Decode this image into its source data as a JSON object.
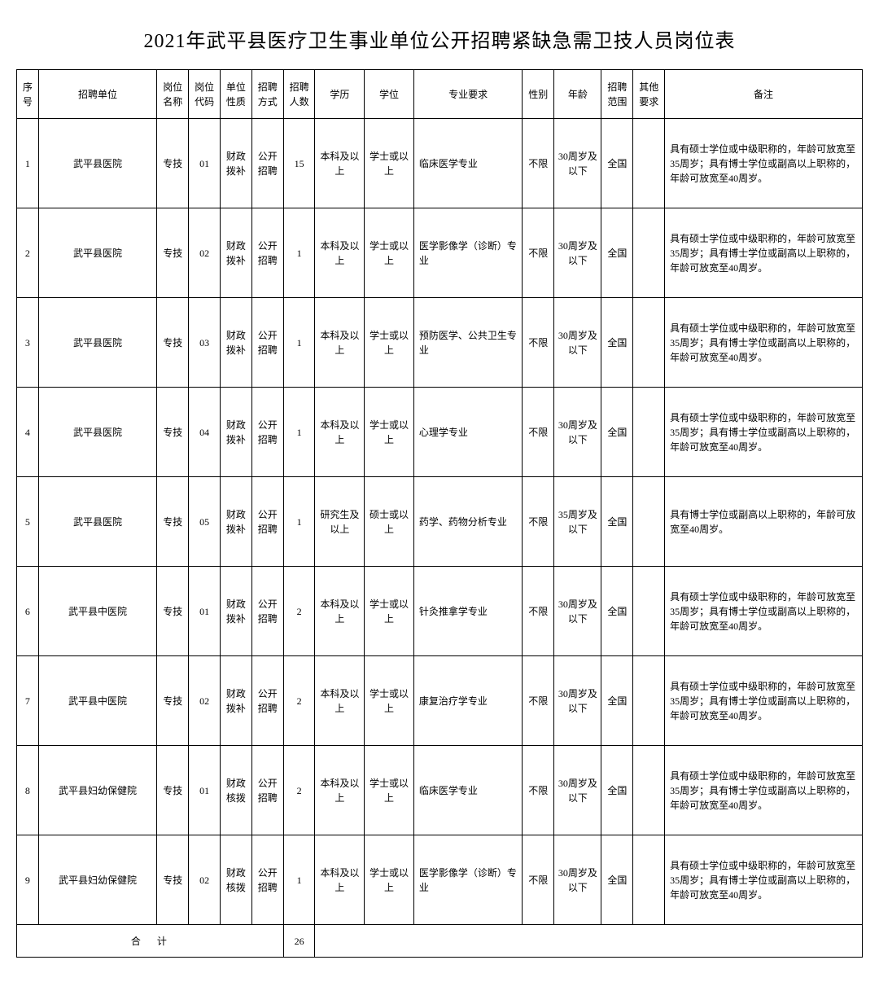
{
  "title": "2021年武平县医疗卫生事业单位公开招聘紧缺急需卫技人员岗位表",
  "headers": {
    "seq": "序号",
    "unit": "招聘单位",
    "posname": "岗位名称",
    "poscode": "岗位代码",
    "unittype": "单位性质",
    "method": "招聘方式",
    "count": "招聘人数",
    "edu": "学历",
    "degree": "学位",
    "major": "专业要求",
    "gender": "性别",
    "age": "年龄",
    "scope": "招聘范围",
    "other": "其他要求",
    "remark": "备注"
  },
  "rows": [
    {
      "seq": "1",
      "unit": "武平县医院",
      "posname": "专技",
      "poscode": "01",
      "unittype": "财政拨补",
      "method": "公开招聘",
      "count": "15",
      "edu": "本科及以上",
      "degree": "学士或以上",
      "major": "临床医学专业",
      "gender": "不限",
      "age": "30周岁及以下",
      "scope": "全国",
      "other": "",
      "remark": "具有硕士学位或中级职称的，年龄可放宽至35周岁；具有博士学位或副高以上职称的，年龄可放宽至40周岁。"
    },
    {
      "seq": "2",
      "unit": "武平县医院",
      "posname": "专技",
      "poscode": "02",
      "unittype": "财政拨补",
      "method": "公开招聘",
      "count": "1",
      "edu": "本科及以上",
      "degree": "学士或以上",
      "major": "医学影像学（诊断）专业",
      "gender": "不限",
      "age": "30周岁及以下",
      "scope": "全国",
      "other": "",
      "remark": "具有硕士学位或中级职称的，年龄可放宽至35周岁；具有博士学位或副高以上职称的，年龄可放宽至40周岁。"
    },
    {
      "seq": "3",
      "unit": "武平县医院",
      "posname": "专技",
      "poscode": "03",
      "unittype": "财政拨补",
      "method": "公开招聘",
      "count": "1",
      "edu": "本科及以上",
      "degree": "学士或以上",
      "major": "预防医学、公共卫生专业",
      "gender": "不限",
      "age": "30周岁及以下",
      "scope": "全国",
      "other": "",
      "remark": "具有硕士学位或中级职称的，年龄可放宽至35周岁；具有博士学位或副高以上职称的，年龄可放宽至40周岁。"
    },
    {
      "seq": "4",
      "unit": "武平县医院",
      "posname": "专技",
      "poscode": "04",
      "unittype": "财政拨补",
      "method": "公开招聘",
      "count": "1",
      "edu": "本科及以上",
      "degree": "学士或以上",
      "major": "心理学专业",
      "gender": "不限",
      "age": "30周岁及以下",
      "scope": "全国",
      "other": "",
      "remark": "具有硕士学位或中级职称的，年龄可放宽至35周岁；具有博士学位或副高以上职称的，年龄可放宽至40周岁。"
    },
    {
      "seq": "5",
      "unit": "武平县医院",
      "posname": "专技",
      "poscode": "05",
      "unittype": "财政拨补",
      "method": "公开招聘",
      "count": "1",
      "edu": "研究生及以上",
      "degree": "硕士或以上",
      "major": "药学、药物分析专业",
      "gender": "不限",
      "age": "35周岁及以下",
      "scope": "全国",
      "other": "",
      "remark": "具有博士学位或副高以上职称的，年龄可放宽至40周岁。"
    },
    {
      "seq": "6",
      "unit": "武平县中医院",
      "posname": "专技",
      "poscode": "01",
      "unittype": "财政拨补",
      "method": "公开招聘",
      "count": "2",
      "edu": "本科及以上",
      "degree": "学士或以上",
      "major": "针灸推拿学专业",
      "gender": "不限",
      "age": "30周岁及以下",
      "scope": "全国",
      "other": "",
      "remark": "具有硕士学位或中级职称的，年龄可放宽至35周岁；具有博士学位或副高以上职称的，年龄可放宽至40周岁。"
    },
    {
      "seq": "7",
      "unit": "武平县中医院",
      "posname": "专技",
      "poscode": "02",
      "unittype": "财政拨补",
      "method": "公开招聘",
      "count": "2",
      "edu": "本科及以上",
      "degree": "学士或以上",
      "major": "康复治疗学专业",
      "gender": "不限",
      "age": "30周岁及以下",
      "scope": "全国",
      "other": "",
      "remark": "具有硕士学位或中级职称的，年龄可放宽至35周岁；具有博士学位或副高以上职称的，年龄可放宽至40周岁。"
    },
    {
      "seq": "8",
      "unit": "武平县妇幼保健院",
      "posname": "专技",
      "poscode": "01",
      "unittype": "财政核拨",
      "method": "公开招聘",
      "count": "2",
      "edu": "本科及以上",
      "degree": "学士或以上",
      "major": "临床医学专业",
      "gender": "不限",
      "age": "30周岁及以下",
      "scope": "全国",
      "other": "",
      "remark": "具有硕士学位或中级职称的，年龄可放宽至35周岁；具有博士学位或副高以上职称的，年龄可放宽至40周岁。"
    },
    {
      "seq": "9",
      "unit": "武平县妇幼保健院",
      "posname": "专技",
      "poscode": "02",
      "unittype": "财政核拨",
      "method": "公开招聘",
      "count": "1",
      "edu": "本科及以上",
      "degree": "学士或以上",
      "major": "医学影像学（诊断）专业",
      "gender": "不限",
      "age": "30周岁及以下",
      "scope": "全国",
      "other": "",
      "remark": "具有硕士学位或中级职称的，年龄可放宽至35周岁；具有博士学位或副高以上职称的，年龄可放宽至40周岁。"
    }
  ],
  "total": {
    "label": "合计",
    "value": "26"
  }
}
